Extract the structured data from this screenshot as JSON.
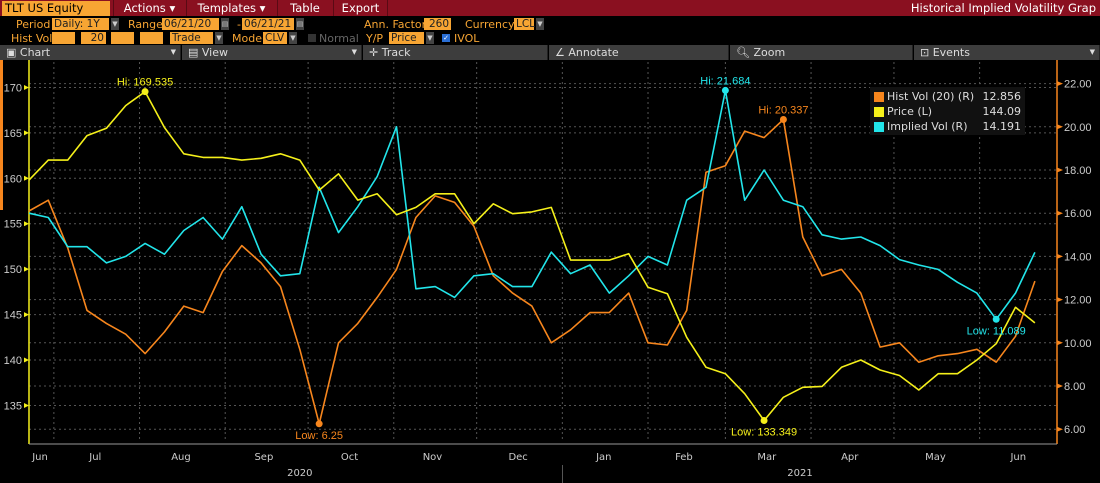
{
  "header": {
    "ticker": "TLT US Equity",
    "menus": [
      "Actions ▾",
      "Templates ▾",
      "Table",
      "Export"
    ],
    "title": "Historical Implied Volatility Grap"
  },
  "controls": {
    "period_label": "Period",
    "period_value": "Daily: 1Y",
    "range_label": "Range",
    "range_start": "06/21/20",
    "range_sep": "-",
    "range_end": "06/21/21",
    "ann_factor_label": "Ann. Factor",
    "ann_factor_value": "260",
    "currency_label": "Currency",
    "currency_value": "LCL",
    "hist_vol_label": "Hist Vol",
    "hist_vol_window": "20",
    "trade_value": "Trade",
    "model_label": "Model",
    "model_value": "CLV",
    "normal_label": "Normal",
    "yp_label": "Y/P",
    "yp_value": "Price",
    "ivol_label": "IVOL",
    "ivol_checked": true
  },
  "toolbar": [
    "Chart",
    "View",
    "Track",
    "Annotate",
    "Zoom",
    "Events"
  ],
  "legend": [
    {
      "name": "Hist Vol (20) (R)",
      "value": "12.856",
      "color": "#f7861d"
    },
    {
      "name": "Price (L)",
      "value": "144.09",
      "color": "#f5f01a"
    },
    {
      "name": "Implied Vol (R)",
      "value": "14.191",
      "color": "#22e5ea"
    }
  ],
  "chart_data": {
    "type": "line",
    "x": [
      "2020-06-22",
      "2020-06-29",
      "2020-07-06",
      "2020-07-13",
      "2020-07-20",
      "2020-07-27",
      "2020-08-03",
      "2020-08-10",
      "2020-08-17",
      "2020-08-24",
      "2020-08-31",
      "2020-09-07",
      "2020-09-14",
      "2020-09-21",
      "2020-09-28",
      "2020-10-05",
      "2020-10-12",
      "2020-10-19",
      "2020-10-26",
      "2020-11-02",
      "2020-11-09",
      "2020-11-16",
      "2020-11-23",
      "2020-11-30",
      "2020-12-07",
      "2020-12-14",
      "2020-12-21",
      "2020-12-28",
      "2021-01-04",
      "2021-01-11",
      "2021-01-18",
      "2021-01-25",
      "2021-02-01",
      "2021-02-08",
      "2021-02-15",
      "2021-02-22",
      "2021-03-01",
      "2021-03-08",
      "2021-03-15",
      "2021-03-22",
      "2021-03-29",
      "2021-04-05",
      "2021-04-12",
      "2021-04-19",
      "2021-04-26",
      "2021-05-03",
      "2021-05-10",
      "2021-05-17",
      "2021-05-24",
      "2021-05-31",
      "2021-06-07",
      "2021-06-14",
      "2021-06-21"
    ],
    "x_range": [
      "2020-06-22",
      "2021-06-29"
    ],
    "series": [
      {
        "name": "Hist Vol (20) (R)",
        "axis": "right",
        "color": "#f7861d",
        "values": [
          16.1,
          16.6,
          14.4,
          11.5,
          10.9,
          10.4,
          9.5,
          10.5,
          11.7,
          11.4,
          13.3,
          14.5,
          13.7,
          12.6,
          9.7,
          6.25,
          10.0,
          10.9,
          12.1,
          13.4,
          15.8,
          16.8,
          16.5,
          15.4,
          13.1,
          12.3,
          11.7,
          10.0,
          10.6,
          11.4,
          11.4,
          12.3,
          10.0,
          9.9,
          11.5,
          17.9,
          18.2,
          19.8,
          19.5,
          20.337,
          14.9,
          13.1,
          13.4,
          12.3,
          9.8,
          10.0,
          9.1,
          9.4,
          9.5,
          9.7,
          9.1,
          10.3,
          12.856
        ]
      },
      {
        "name": "Price (L)",
        "axis": "left",
        "color": "#f5f01a",
        "values": [
          159.8,
          162.0,
          162.0,
          164.7,
          165.5,
          168.0,
          169.535,
          165.6,
          162.7,
          162.3,
          162.3,
          162.0,
          162.2,
          162.7,
          162.0,
          158.7,
          160.5,
          157.6,
          158.3,
          156.0,
          156.8,
          158.3,
          158.3,
          155.0,
          157.2,
          156.1,
          156.3,
          156.8,
          151.0,
          151.0,
          151.0,
          151.7,
          148.0,
          147.3,
          142.5,
          139.2,
          138.5,
          136.3,
          133.349,
          135.9,
          137.0,
          137.1,
          139.2,
          140.0,
          138.9,
          138.3,
          136.7,
          138.5,
          138.5,
          140.0,
          141.8,
          145.8,
          144.09
        ]
      },
      {
        "name": "Implied Vol (R)",
        "axis": "right",
        "color": "#22e5ea",
        "values": [
          16.0,
          15.8,
          14.45,
          14.45,
          13.7,
          14.0,
          14.6,
          14.1,
          15.2,
          15.8,
          14.8,
          16.3,
          14.1,
          13.1,
          13.2,
          17.2,
          15.1,
          16.3,
          17.7,
          20.0,
          12.5,
          12.6,
          12.1,
          13.1,
          13.2,
          12.6,
          12.6,
          14.2,
          13.2,
          13.6,
          12.3,
          13.1,
          14.0,
          13.6,
          16.6,
          17.2,
          21.684,
          16.6,
          18.0,
          16.6,
          16.3,
          15.0,
          14.8,
          14.9,
          14.5,
          13.85,
          13.6,
          13.4,
          12.8,
          12.3,
          11.089,
          12.3,
          14.191
        ]
      }
    ],
    "annotations": [
      {
        "series": "Price (L)",
        "label": "Hi: 169.535",
        "index": 6
      },
      {
        "series": "Price (L)",
        "label": "Low: 133.349",
        "index": 38
      },
      {
        "series": "Hist Vol (20) (R)",
        "label": "Hi: 20.337",
        "index": 39
      },
      {
        "series": "Hist Vol (20) (R)",
        "label": "Low: 6.25",
        "index": 15
      },
      {
        "series": "Implied Vol (R)",
        "label": "Hi: 21.684",
        "index": 36
      },
      {
        "series": "Implied Vol (R)",
        "label": "Low: 11.089",
        "index": 50
      }
    ],
    "left_axis": {
      "ticks": [
        170,
        165,
        160,
        155,
        150,
        145,
        140,
        135
      ],
      "ylim": [
        131.2,
        172.8
      ]
    },
    "right_axis": {
      "ticks": [
        "22.00",
        "20.00",
        "18.00",
        "16.00",
        "14.00",
        "12.00",
        "10.00",
        "8.00",
        "6.00"
      ],
      "ylim": [
        5.5,
        23.0
      ]
    },
    "month_labels": [
      {
        "label": "Jun",
        "date": "2020-06-26"
      },
      {
        "label": "Jul",
        "date": "2020-07-16"
      },
      {
        "label": "Aug",
        "date": "2020-08-16"
      },
      {
        "label": "Sep",
        "date": "2020-09-15"
      },
      {
        "label": "Oct",
        "date": "2020-10-16"
      },
      {
        "label": "Nov",
        "date": "2020-11-15"
      },
      {
        "label": "Dec",
        "date": "2020-12-16"
      },
      {
        "label": "Jan",
        "date": "2021-01-16"
      },
      {
        "label": "Feb",
        "date": "2021-02-14"
      },
      {
        "label": "Mar",
        "date": "2021-03-16"
      },
      {
        "label": "Apr",
        "date": "2021-04-15"
      },
      {
        "label": "May",
        "date": "2021-05-16"
      },
      {
        "label": "Jun",
        "date": "2021-06-15"
      }
    ],
    "year_labels": [
      {
        "label": "2020",
        "date": "2020-09-28"
      },
      {
        "label": "2021",
        "date": "2021-03-28"
      }
    ],
    "grid": true,
    "legend_position": "top-right"
  }
}
